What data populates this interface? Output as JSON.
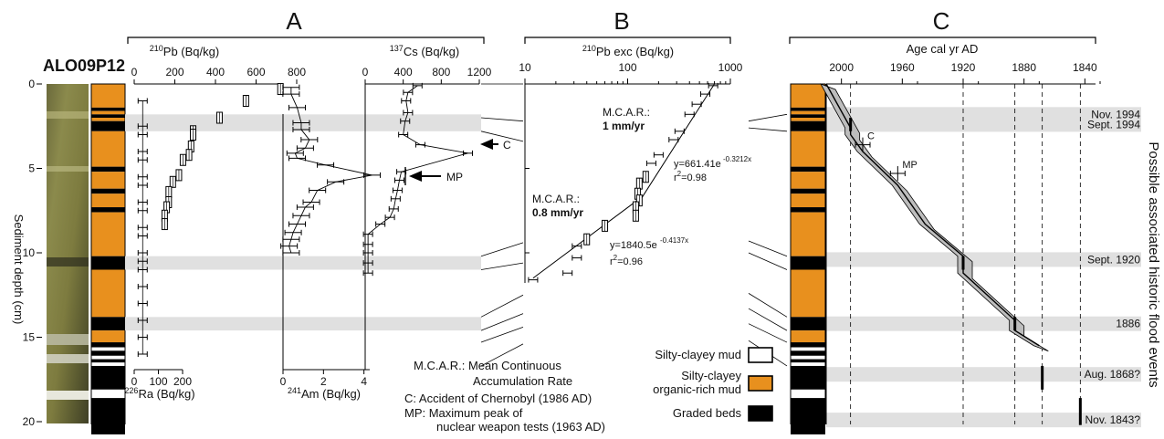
{
  "figure": {
    "core_id": "ALO09P12",
    "panel_labels": [
      "A",
      "B",
      "C"
    ],
    "depth_axis_label": "Sediment depth (cm)",
    "depth_ticks": [
      "0",
      "5",
      "10",
      "15",
      "20"
    ],
    "side_label": "Possible associated historic flood events",
    "legend": {
      "items": [
        {
          "label": "Silty-clayey mud",
          "color": "#ffffff"
        },
        {
          "label_lines": [
            "Silty-clayey",
            "organic-rich mud"
          ],
          "color": "#e8901e"
        },
        {
          "label": "Graded beds",
          "color": "#000000"
        }
      ]
    },
    "notes": [
      "M.C.A.R.: Mean Continuous",
      "Accumulation Rate",
      "C: Accident of Chernobyl (1986 AD)",
      "MP: Maximum peak of",
      "nuclear weapon tests (1963 AD)"
    ],
    "colors": {
      "organic": "#e8901e",
      "graded": "#000000",
      "band": "#e0e0e0",
      "envelope": "#bdbdbd"
    }
  },
  "chart_data": [
    {
      "type": "scatter",
      "panel": "A",
      "series": [
        {
          "name": "210Pb",
          "unit": "Bq/kg",
          "axis_title": "210Pb (Bq/kg)",
          "ticks": [
            "0",
            "200",
            "400",
            "600",
            "800"
          ],
          "xlim": [
            0,
            800
          ],
          "x": [
            720,
            550,
            420,
            290,
            290,
            280,
            270,
            240,
            220,
            190,
            170,
            170,
            160,
            150,
            150
          ],
          "y": [
            0.3,
            1.0,
            2.0,
            2.8,
            3.0,
            3.7,
            4.2,
            4.5,
            5.4,
            5.8,
            6.4,
            7.0,
            7.3,
            7.8,
            8.3
          ]
        },
        {
          "name": "226Ra",
          "unit": "Bq/kg",
          "axis_title": "226Ra (Bq/kg)",
          "ticks": [
            "0",
            "100",
            "200"
          ],
          "xlim": [
            0,
            200
          ],
          "x": [
            35,
            35,
            35,
            35,
            35,
            35,
            35,
            35,
            35,
            35,
            35,
            35,
            35,
            35,
            35,
            35,
            35,
            35,
            35
          ],
          "y": [
            1.0,
            2.5,
            3.0,
            4.0,
            4.5,
            5.5,
            6.0,
            7.0,
            7.5,
            8.5,
            9.0,
            10.0,
            10.5,
            11.0,
            12.0,
            13.0,
            14.0,
            15.0,
            16.0
          ]
        },
        {
          "name": "241Am",
          "unit": "Bq/kg",
          "axis_title": "241Am (Bq/kg)",
          "ticks": [
            "0",
            "2",
            "4"
          ],
          "xlim": [
            0,
            6
          ],
          "x": [
            0.4,
            0.4,
            0.7,
            0.9,
            0.9,
            1.3,
            1.1,
            0.6,
            0.7,
            2.1,
            4.4,
            2.6,
            1.7,
            1.4,
            1.1,
            0.9,
            0.7,
            0.5,
            0.4,
            0.3,
            0.4
          ],
          "y": [
            0.2,
            0.6,
            1.4,
            2.3,
            2.7,
            3.3,
            3.8,
            4.1,
            4.4,
            4.8,
            5.4,
            5.8,
            6.3,
            7.0,
            7.3,
            7.8,
            8.3,
            8.8,
            9.2,
            9.6,
            10.0
          ]
        },
        {
          "name": "137Cs",
          "unit": "Bq/kg",
          "axis_title": "137Cs (Bq/kg)",
          "ticks": [
            "0",
            "400",
            "800",
            "1200"
          ],
          "xlim": [
            0,
            1200
          ],
          "x": [
            550,
            450,
            430,
            450,
            420,
            400,
            580,
            1080,
            380,
            360,
            340,
            320,
            300,
            260,
            160,
            30,
            30,
            30,
            30,
            30
          ],
          "y": [
            0.1,
            0.5,
            1.0,
            1.7,
            2.2,
            3.0,
            3.6,
            4.1,
            5.2,
            5.7,
            6.3,
            6.8,
            7.4,
            7.9,
            8.3,
            8.9,
            9.5,
            10.0,
            10.6,
            11.2
          ]
        }
      ],
      "annotations": [
        {
          "text": "C",
          "y": 3.6
        },
        {
          "text": "MP",
          "y": 5.5
        }
      ],
      "ylim": [
        0,
        21
      ],
      "ylabel": "Sediment depth (cm)"
    },
    {
      "type": "scatter",
      "panel": "B",
      "axis_title": "210Pb exc (Bq/kg)",
      "x_scale": "log",
      "xlim": [
        10,
        1000
      ],
      "x_ticks": [
        "10",
        "100",
        "1000"
      ],
      "ylim": [
        0,
        21
      ],
      "points": {
        "x": [
          680,
          570,
          470,
          400,
          320,
          280,
          200,
          170,
          150,
          130,
          125,
          130,
          120,
          120,
          60,
          40,
          32,
          32,
          26,
          12
        ],
        "y": [
          0.1,
          0.6,
          1.2,
          1.8,
          2.8,
          3.3,
          4.2,
          4.7,
          5.5,
          5.9,
          6.5,
          6.9,
          7.3,
          7.8,
          8.4,
          9.2,
          9.6,
          10.3,
          11.2,
          11.6
        ]
      },
      "fits": [
        {
          "label": "M.C.A.R.:",
          "value": "1 mm/yr",
          "equation": "y=661.41e",
          "exponent": "-0.3212x",
          "r2_prefix": "r",
          "r2_value": "=0.98"
        },
        {
          "label": "M.C.A.R.:",
          "value": "0.8 mm/yr",
          "equation": "y=1840.5e",
          "exponent": "-0.4137x",
          "r2_prefix": "r",
          "r2_value": "=0.96"
        }
      ]
    },
    {
      "type": "line",
      "panel": "C",
      "axis_title": "Age cal yr AD",
      "x_ticks": [
        "2000",
        "1960",
        "1920",
        "1880",
        "1840"
      ],
      "xlim": [
        2010,
        1830
      ],
      "ylim": [
        0,
        21
      ],
      "age_depth_model": {
        "year": [
          2010,
          1994,
          1994,
          1986,
          1963,
          1945,
          1920,
          1920,
          1886,
          1886,
          1870
        ],
        "depth": [
          0,
          2.6,
          3.0,
          4.0,
          6.0,
          8.3,
          10.2,
          11.2,
          14.0,
          14.6,
          15.5
        ]
      },
      "markers": [
        {
          "text": "C",
          "year": 1986,
          "depth": 3.6
        },
        {
          "text": "MP",
          "year": 1963,
          "depth": 5.3
        }
      ],
      "events": [
        {
          "label": "Nov. 1994",
          "depth": 1.8
        },
        {
          "label": "Sept. 1994",
          "depth": 2.4
        },
        {
          "label": "Sept. 1920",
          "depth": 10.4
        },
        {
          "label": "1886",
          "depth": 14.2
        },
        {
          "label": "Aug. 1868?",
          "depth": 17.2
        },
        {
          "label": "Nov. 1843?",
          "depth": 19.9
        }
      ]
    }
  ]
}
